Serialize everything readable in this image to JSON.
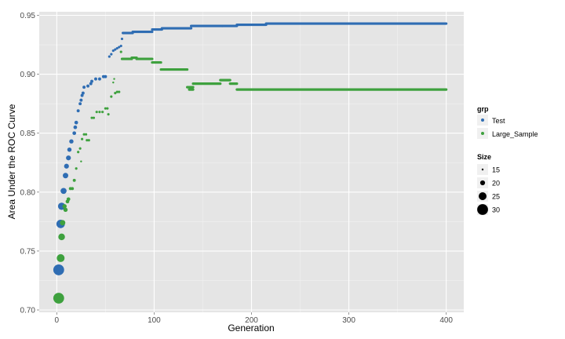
{
  "chart_data": {
    "type": "scatter",
    "title": "",
    "xlabel": "Generation",
    "ylabel": "Area Under the ROC Curve",
    "xlim": [
      -18,
      418
    ],
    "ylim": [
      0.698,
      0.953
    ],
    "x_ticks": [
      0,
      100,
      200,
      300,
      400
    ],
    "y_ticks": [
      0.7,
      0.75,
      0.8,
      0.85,
      0.9,
      0.95
    ],
    "x_tick_labels": [
      "0",
      "100",
      "200",
      "300",
      "400"
    ],
    "y_tick_labels": [
      "0.70",
      "0.75",
      "0.80",
      "0.85",
      "0.90",
      "0.95"
    ],
    "grid": true,
    "legend_color_title": "grp",
    "legend_size_title": "Size",
    "size_legend": [
      15,
      20,
      25,
      30
    ],
    "series": [
      {
        "name": "Test",
        "color": "#2f6db3",
        "points": [
          {
            "x": 2,
            "y": 0.734,
            "size": 30
          },
          {
            "x": 4,
            "y": 0.773,
            "size": 26
          },
          {
            "x": 5,
            "y": 0.788,
            "size": 24
          },
          {
            "x": 7,
            "y": 0.801,
            "size": 22
          },
          {
            "x": 9,
            "y": 0.814,
            "size": 21
          },
          {
            "x": 10,
            "y": 0.822,
            "size": 20
          },
          {
            "x": 12,
            "y": 0.829,
            "size": 20
          },
          {
            "x": 13,
            "y": 0.836,
            "size": 19
          },
          {
            "x": 15,
            "y": 0.843,
            "size": 19
          },
          {
            "x": 18,
            "y": 0.85,
            "size": 18
          },
          {
            "x": 19,
            "y": 0.855,
            "size": 18
          },
          {
            "x": 20,
            "y": 0.859,
            "size": 18
          },
          {
            "x": 22,
            "y": 0.869,
            "size": 17
          },
          {
            "x": 24,
            "y": 0.875,
            "size": 17
          },
          {
            "x": 25,
            "y": 0.878,
            "size": 17
          },
          {
            "x": 26,
            "y": 0.882,
            "size": 17
          },
          {
            "x": 27,
            "y": 0.884,
            "size": 17
          },
          {
            "x": 28,
            "y": 0.889,
            "size": 17
          },
          {
            "x": 32,
            "y": 0.89,
            "size": 17
          },
          {
            "x": 35,
            "y": 0.892,
            "size": 17
          },
          {
            "x": 36,
            "y": 0.894,
            "size": 17
          },
          {
            "x": 40,
            "y": 0.896,
            "size": 17
          },
          {
            "x": 44,
            "y": 0.896,
            "size": 17
          },
          {
            "x": 48,
            "y": 0.898,
            "size": 17
          },
          {
            "x": 50,
            "y": 0.898,
            "size": 17
          },
          {
            "x": 54,
            "y": 0.915,
            "size": 16
          },
          {
            "x": 56,
            "y": 0.917,
            "size": 16
          },
          {
            "x": 58,
            "y": 0.92,
            "size": 16
          },
          {
            "x": 60,
            "y": 0.921,
            "size": 16
          },
          {
            "x": 62,
            "y": 0.922,
            "size": 16
          },
          {
            "x": 64,
            "y": 0.923,
            "size": 16
          },
          {
            "x": 66,
            "y": 0.924,
            "size": 16
          },
          {
            "x": 67,
            "y": 0.93,
            "size": 16
          },
          {
            "x": 68,
            "y": 0.935,
            "size": 16
          }
        ],
        "segments": [
          {
            "x_start": 68,
            "x_end": 78,
            "y": 0.935,
            "size": 16
          },
          {
            "x_start": 78,
            "x_end": 98,
            "y": 0.936,
            "size": 16
          },
          {
            "x_start": 98,
            "x_end": 108,
            "y": 0.938,
            "size": 16
          },
          {
            "x_start": 108,
            "x_end": 138,
            "y": 0.939,
            "size": 16
          },
          {
            "x_start": 138,
            "x_end": 170,
            "y": 0.941,
            "size": 16
          },
          {
            "x_start": 170,
            "x_end": 185,
            "y": 0.941,
            "size": 16
          },
          {
            "x_start": 185,
            "x_end": 215,
            "y": 0.942,
            "size": 16
          },
          {
            "x_start": 215,
            "x_end": 400,
            "y": 0.943,
            "size": 16
          }
        ]
      },
      {
        "name": "Large_Sample",
        "color": "#3ea13e",
        "points": [
          {
            "x": 2,
            "y": 0.71,
            "size": 30
          },
          {
            "x": 4,
            "y": 0.744,
            "size": 25
          },
          {
            "x": 5,
            "y": 0.762,
            "size": 23
          },
          {
            "x": 6,
            "y": 0.774,
            "size": 21
          },
          {
            "x": 8,
            "y": 0.788,
            "size": 19
          },
          {
            "x": 9,
            "y": 0.785,
            "size": 19
          },
          {
            "x": 11,
            "y": 0.792,
            "size": 18
          },
          {
            "x": 12,
            "y": 0.794,
            "size": 18
          },
          {
            "x": 14,
            "y": 0.803,
            "size": 17
          },
          {
            "x": 16,
            "y": 0.803,
            "size": 17
          },
          {
            "x": 18,
            "y": 0.81,
            "size": 17
          },
          {
            "x": 20,
            "y": 0.82,
            "size": 16
          },
          {
            "x": 22,
            "y": 0.834,
            "size": 16
          },
          {
            "x": 24,
            "y": 0.837,
            "size": 16
          },
          {
            "x": 25,
            "y": 0.826,
            "size": 15
          },
          {
            "x": 26,
            "y": 0.845,
            "size": 16
          },
          {
            "x": 28,
            "y": 0.849,
            "size": 16
          },
          {
            "x": 30,
            "y": 0.849,
            "size": 16
          },
          {
            "x": 31,
            "y": 0.844,
            "size": 16
          },
          {
            "x": 33,
            "y": 0.844,
            "size": 16
          },
          {
            "x": 36,
            "y": 0.863,
            "size": 16
          },
          {
            "x": 38,
            "y": 0.863,
            "size": 16
          },
          {
            "x": 41,
            "y": 0.868,
            "size": 16
          },
          {
            "x": 44,
            "y": 0.868,
            "size": 16
          },
          {
            "x": 47,
            "y": 0.868,
            "size": 16
          },
          {
            "x": 50,
            "y": 0.871,
            "size": 16
          },
          {
            "x": 52,
            "y": 0.871,
            "size": 16
          },
          {
            "x": 53,
            "y": 0.866,
            "size": 16
          },
          {
            "x": 56,
            "y": 0.881,
            "size": 16
          },
          {
            "x": 58,
            "y": 0.893,
            "size": 15
          },
          {
            "x": 59,
            "y": 0.896,
            "size": 15
          },
          {
            "x": 60,
            "y": 0.884,
            "size": 16
          },
          {
            "x": 62,
            "y": 0.885,
            "size": 16
          },
          {
            "x": 64,
            "y": 0.885,
            "size": 16
          },
          {
            "x": 66,
            "y": 0.919,
            "size": 16
          }
        ],
        "segments": [
          {
            "x_start": 67,
            "x_end": 77,
            "y": 0.913,
            "size": 16
          },
          {
            "x_start": 77,
            "x_end": 82,
            "y": 0.914,
            "size": 16
          },
          {
            "x_start": 82,
            "x_end": 98,
            "y": 0.913,
            "size": 16
          },
          {
            "x_start": 98,
            "x_end": 107,
            "y": 0.91,
            "size": 16
          },
          {
            "x_start": 107,
            "x_end": 134,
            "y": 0.904,
            "size": 16
          },
          {
            "x_start": 134,
            "x_end": 140,
            "y": 0.889,
            "size": 16
          },
          {
            "x_start": 136,
            "x_end": 140,
            "y": 0.887,
            "size": 16
          },
          {
            "x_start": 140,
            "x_end": 168,
            "y": 0.892,
            "size": 16
          },
          {
            "x_start": 168,
            "x_end": 178,
            "y": 0.895,
            "size": 16
          },
          {
            "x_start": 178,
            "x_end": 185,
            "y": 0.892,
            "size": 16
          },
          {
            "x_start": 185,
            "x_end": 400,
            "y": 0.887,
            "size": 16
          }
        ]
      }
    ]
  }
}
